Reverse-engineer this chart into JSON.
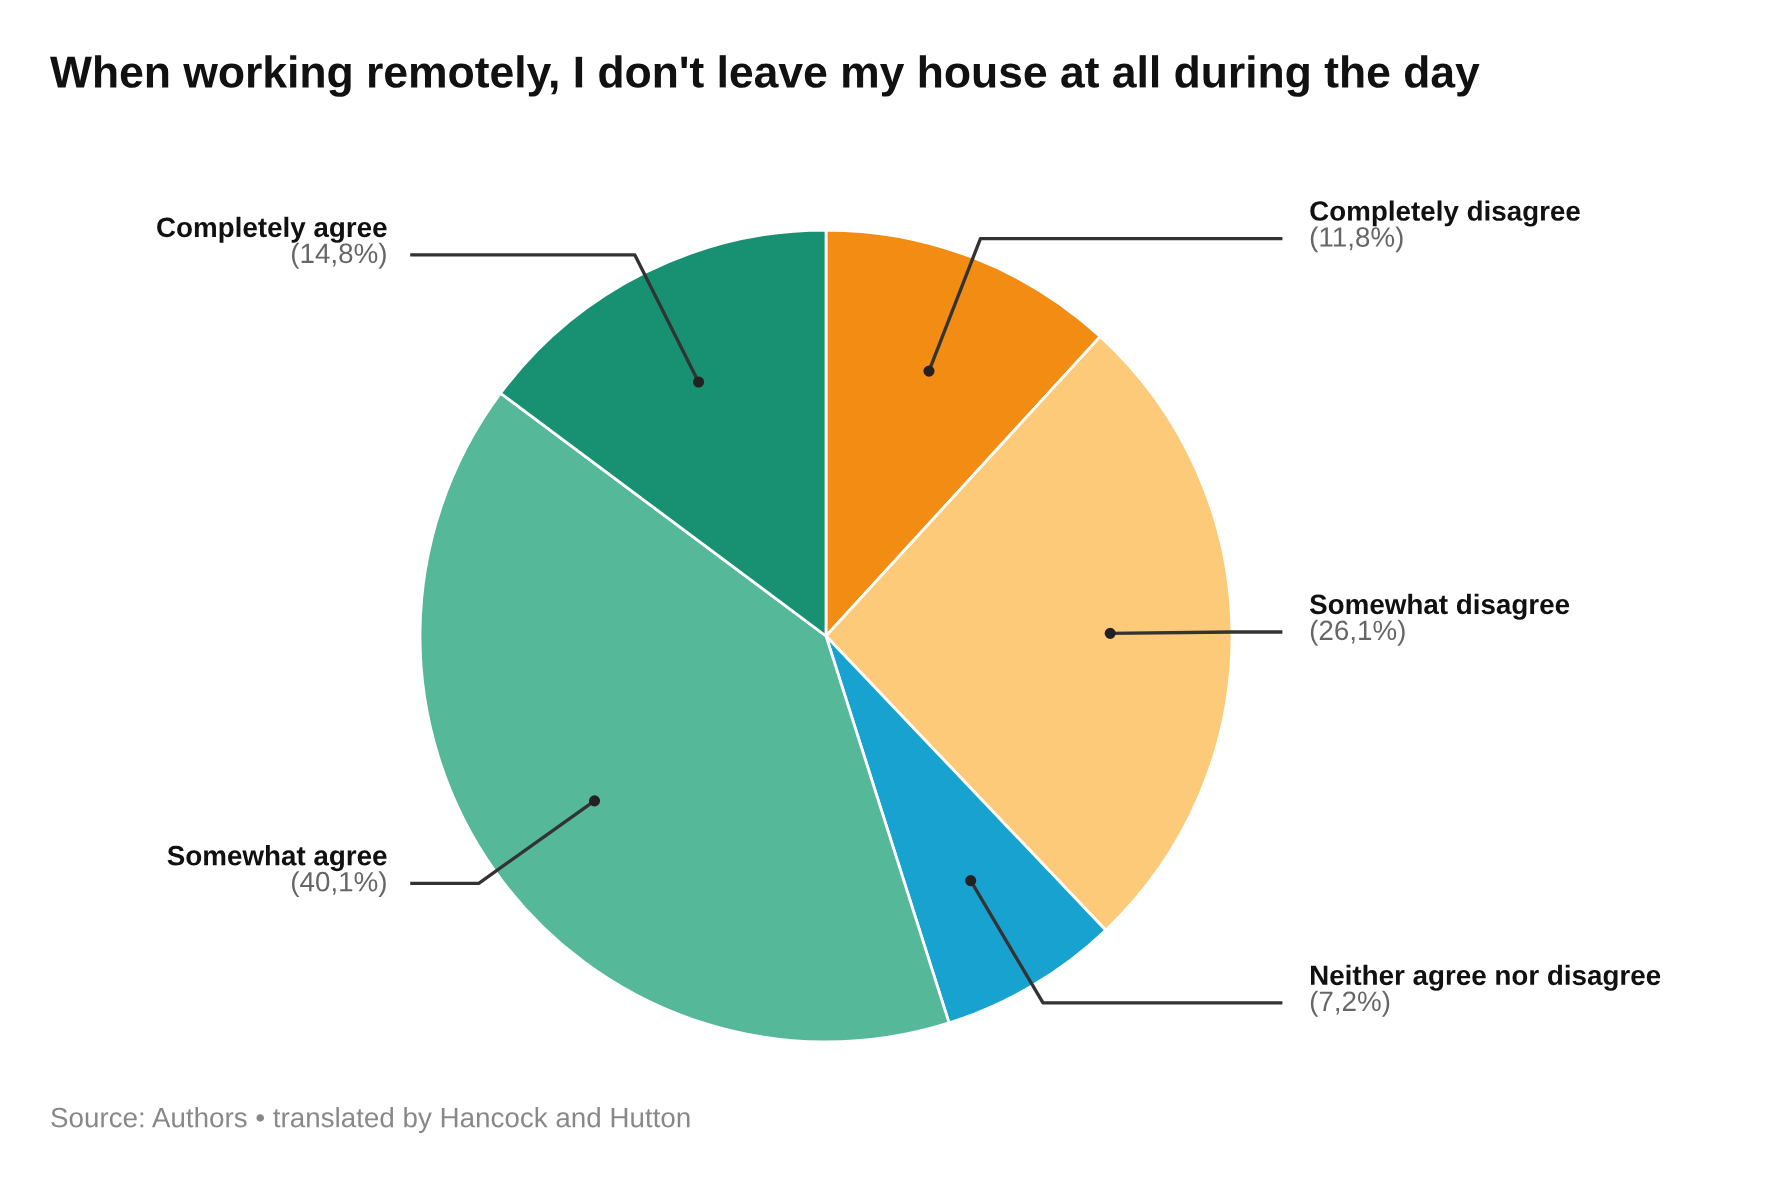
{
  "chart_data": {
    "type": "pie",
    "title": "When working remotely, I don't leave my house at all during the day",
    "categories": [
      "Completely disagree",
      "Somewhat disagree",
      "Neither agree nor disagree",
      "Somewhat agree",
      "Completely agree"
    ],
    "values": [
      11.8,
      26.1,
      7.2,
      40.1,
      14.8
    ],
    "colors": [
      "#f28c13",
      "#fdca7a",
      "#18a2cf",
      "#54b899",
      "#189173"
    ],
    "value_labels": [
      "(11,8%)",
      "(26,1%)",
      "(7,2%)",
      "(40,1%)",
      "(14,8%)"
    ],
    "annotations": [
      "Source: Authors • translated by Hancock and Hutton"
    ]
  }
}
